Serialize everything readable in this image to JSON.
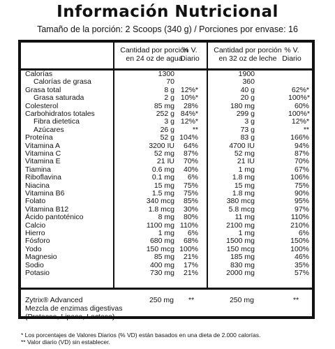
{
  "title": "Información Nutricional",
  "serving": "Tamaño de la porción: 2 Scoops (340 g) / Porciones por envase: 16",
  "headers": {
    "col1": "Cantidad por porción\nen 24 oz de agua",
    "col2": "% V.\nDiario",
    "col3": "Cantidad por porción\nen 32 oz de leche",
    "col4": "% V.\nDiario"
  },
  "rows": [
    {
      "name": "Calorías",
      "indent": false,
      "v1": "1300",
      "p1": "",
      "v2": "1900",
      "p2": ""
    },
    {
      "name": "Calorías de grasa",
      "indent": true,
      "v1": "70",
      "p1": "",
      "v2": "360",
      "p2": ""
    },
    {
      "name": "Grasa total",
      "indent": false,
      "v1": "8 g",
      "p1": "12%*",
      "v2": "40 g",
      "p2": "62%*"
    },
    {
      "name": "Grasa saturada",
      "indent": true,
      "v1": "2 g",
      "p1": "10%*",
      "v2": "20 g",
      "p2": "100%*"
    },
    {
      "name": "Colesterol",
      "indent": false,
      "v1": "85 mg",
      "p1": "28%",
      "v2": "180 mg",
      "p2": "60%"
    },
    {
      "name": "Carbohidratos totales",
      "indent": false,
      "v1": "252 g",
      "p1": "84%*",
      "v2": "299 g",
      "p2": "100%*"
    },
    {
      "name": "Fibra dietetica",
      "indent": true,
      "v1": "3 g",
      "p1": "12%*",
      "v2": "3 g",
      "p2": "12%*"
    },
    {
      "name": "Azúcares",
      "indent": true,
      "v1": "26 g",
      "p1": "**",
      "v2": "73 g",
      "p2": "**"
    },
    {
      "name": "Proteína",
      "indent": false,
      "v1": "52 g",
      "p1": "104%",
      "v2": "83 g",
      "p2": "166%"
    },
    {
      "name": "Vitamina A",
      "indent": false,
      "v1": "3200 IU",
      "p1": "64%",
      "v2": "4700 IU",
      "p2": "94%"
    },
    {
      "name": "Vitamina C",
      "indent": false,
      "v1": "52 mg",
      "p1": "87%",
      "v2": "52 mg",
      "p2": "87%"
    },
    {
      "name": "Vitamina E",
      "indent": false,
      "v1": "21 IU",
      "p1": "70%",
      "v2": "21 IU",
      "p2": "70%"
    },
    {
      "name": "Tiamina",
      "indent": false,
      "v1": "0.6 mg",
      "p1": "40%",
      "v2": "1 mg",
      "p2": "67%"
    },
    {
      "name": "Riboflavina",
      "indent": false,
      "v1": "0.1 mg",
      "p1": "6%",
      "v2": "1.8 mg",
      "p2": "106%"
    },
    {
      "name": "Niacina",
      "indent": false,
      "v1": "15 mg",
      "p1": "75%",
      "v2": "15 mg",
      "p2": "75%"
    },
    {
      "name": "Vitamina B6",
      "indent": false,
      "v1": "1.5 mg",
      "p1": "75%",
      "v2": "1.8 mg",
      "p2": "90%"
    },
    {
      "name": "Folato",
      "indent": false,
      "v1": "340 mcg",
      "p1": "85%",
      "v2": "380 mcg",
      "p2": "95%"
    },
    {
      "name": "Vitamina B12",
      "indent": false,
      "v1": "1.8 mcg",
      "p1": "30%",
      "v2": "5.8 mcg",
      "p2": "97%"
    },
    {
      "name": "Ácido pantoténico",
      "indent": false,
      "v1": "8 mg",
      "p1": "80%",
      "v2": "11 mg",
      "p2": "110%"
    },
    {
      "name": "Calcio",
      "indent": false,
      "v1": "1100 mg",
      "p1": "110%",
      "v2": "2100 mg",
      "p2": "210%"
    },
    {
      "name": "Hierro",
      "indent": false,
      "v1": "1 mg",
      "p1": "6%",
      "v2": "1 mg",
      "p2": "6%"
    },
    {
      "name": "Fósforo",
      "indent": false,
      "v1": "680 mg",
      "p1": "68%",
      "v2": "1500 mg",
      "p2": "150%"
    },
    {
      "name": "Yodo",
      "indent": false,
      "v1": "150 mcg",
      "p1": "100%",
      "v2": "150 mcg",
      "p2": "100%"
    },
    {
      "name": "Magnesio",
      "indent": false,
      "v1": "85 mg",
      "p1": "21%",
      "v2": "185 mg",
      "p2": "46%"
    },
    {
      "name": "Sodio",
      "indent": false,
      "v1": "400 mg",
      "p1": "17%",
      "v2": "830 mg",
      "p2": "35%"
    },
    {
      "name": "Potasio",
      "indent": false,
      "v1": "730 mg",
      "p1": "21%",
      "v2": "2000 mg",
      "p2": "57%"
    }
  ],
  "blend": {
    "line1": "Zytrix® Advanced",
    "line2": "Mezcla de enzimas digestivas",
    "line3": "(Proteasa, Lipasa, Lactasa)",
    "v1": "250 mg",
    "p1": "**",
    "v2": "250 mg",
    "p2": "**"
  },
  "footnotes": [
    "* Los porcentajes de Valores Diarios (% VD) están basados en una dieta de 2.000 calorías.",
    "** Valor diario (VD) sin establecer."
  ]
}
